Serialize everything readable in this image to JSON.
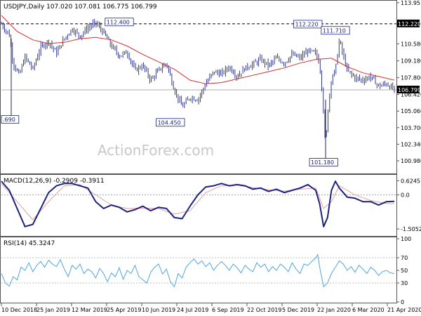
{
  "chart_data": [
    {
      "type": "candlestick",
      "symbol_header": "USDJPY,Daily  107.020 107.081 106.775 106.799",
      "watermark": "ActionForex.com",
      "ylim": [
        100.06,
        114.0
      ],
      "y_ticks": [
        113.95,
        112.22,
        110.58,
        109.18,
        107.8,
        106.42,
        105.06,
        103.7,
        102.34,
        100.98
      ],
      "y_tick_labels": [
        "113.95",
        "112.220",
        "110.580",
        "109.180",
        "107.800",
        "106.420",
        "105.060",
        "103.700",
        "102.340",
        "100.980"
      ],
      "last_price": 106.799,
      "last_price_label": "106.799",
      "hline": {
        "value": 112.22,
        "label": "112.220"
      },
      "hline2": {
        "value": 106.799
      },
      "annotations": [
        {
          "label": "112.400",
          "price": 112.4,
          "t": 0.3
        },
        {
          "label": "104.450",
          "price": 104.45,
          "t": 0.43
        },
        {
          "label": "112.220",
          "price": 112.22,
          "t": 0.78
        },
        {
          "label": "111.710",
          "price": 111.71,
          "t": 0.85
        },
        {
          "label": "101.180",
          "price": 101.18,
          "t": 0.82
        },
        {
          "label": ".690",
          "price": 104.69,
          "t": 0.02
        }
      ],
      "price_path": [
        [
          0.0,
          112.2
        ],
        [
          0.02,
          111.3
        ],
        [
          0.03,
          109.0
        ],
        [
          0.045,
          108.0
        ],
        [
          0.06,
          109.5
        ],
        [
          0.08,
          108.5
        ],
        [
          0.1,
          110.3
        ],
        [
          0.12,
          110.8
        ],
        [
          0.14,
          109.8
        ],
        [
          0.16,
          111.0
        ],
        [
          0.18,
          111.8
        ],
        [
          0.2,
          111.2
        ],
        [
          0.22,
          111.9
        ],
        [
          0.24,
          112.3
        ],
        [
          0.26,
          111.5
        ],
        [
          0.28,
          110.4
        ],
        [
          0.3,
          109.6
        ],
        [
          0.32,
          109.9
        ],
        [
          0.34,
          108.4
        ],
        [
          0.36,
          108.8
        ],
        [
          0.38,
          107.6
        ],
        [
          0.4,
          108.4
        ],
        [
          0.42,
          109.0
        ],
        [
          0.44,
          106.8
        ],
        [
          0.46,
          105.4
        ],
        [
          0.48,
          106.2
        ],
        [
          0.5,
          106.0
        ],
        [
          0.52,
          107.3
        ],
        [
          0.54,
          108.3
        ],
        [
          0.56,
          108.1
        ],
        [
          0.58,
          108.7
        ],
        [
          0.6,
          107.9
        ],
        [
          0.62,
          108.6
        ],
        [
          0.64,
          108.9
        ],
        [
          0.66,
          109.3
        ],
        [
          0.68,
          108.8
        ],
        [
          0.7,
          109.4
        ],
        [
          0.72,
          109.0
        ],
        [
          0.74,
          109.7
        ],
        [
          0.76,
          109.4
        ],
        [
          0.78,
          110.0
        ],
        [
          0.8,
          109.8
        ],
        [
          0.81,
          108.9
        ],
        [
          0.815,
          107.2
        ],
        [
          0.82,
          104.8
        ],
        [
          0.825,
          101.9
        ],
        [
          0.83,
          104.9
        ],
        [
          0.84,
          107.8
        ],
        [
          0.85,
          108.4
        ],
        [
          0.86,
          110.9
        ],
        [
          0.87,
          109.6
        ],
        [
          0.88,
          108.4
        ],
        [
          0.9,
          107.8
        ],
        [
          0.92,
          107.6
        ],
        [
          0.94,
          107.9
        ],
        [
          0.96,
          107.1
        ],
        [
          0.98,
          107.3
        ],
        [
          1.0,
          106.8
        ]
      ],
      "ma_path": [
        [
          0.0,
          112.9
        ],
        [
          0.04,
          111.6
        ],
        [
          0.08,
          110.9
        ],
        [
          0.12,
          110.6
        ],
        [
          0.16,
          110.7
        ],
        [
          0.2,
          111.0
        ],
        [
          0.24,
          111.1
        ],
        [
          0.28,
          110.9
        ],
        [
          0.32,
          110.4
        ],
        [
          0.36,
          109.7
        ],
        [
          0.4,
          109.1
        ],
        [
          0.44,
          108.5
        ],
        [
          0.48,
          107.6
        ],
        [
          0.52,
          107.3
        ],
        [
          0.56,
          107.4
        ],
        [
          0.6,
          107.7
        ],
        [
          0.64,
          108.0
        ],
        [
          0.68,
          108.3
        ],
        [
          0.72,
          108.6
        ],
        [
          0.76,
          109.0
        ],
        [
          0.8,
          109.3
        ],
        [
          0.84,
          109.4
        ],
        [
          0.88,
          108.7
        ],
        [
          0.92,
          108.2
        ],
        [
          0.96,
          107.9
        ],
        [
          1.0,
          107.6
        ]
      ],
      "x_tick_labels": [
        "10 Dec 2018",
        "25 Jan 2019",
        "12 Mar 2019",
        "25 Apr 2019",
        "10 Jun 2019",
        "24 Jul 2019",
        "6 Sep 2019",
        "22 Oct 2019",
        "5 Dec 2019",
        "22 Jan 2020",
        "6 Mar 2020",
        "21 Apr 2020"
      ],
      "colors": {
        "candles": "#1a237e",
        "ma": "#d32f2f",
        "hline": "#000000",
        "grid": "#c0c0c0"
      }
    },
    {
      "type": "line",
      "header": "MACD(12,26,9) -0.2909 -0.3911",
      "ylim": [
        -1.75,
        0.82
      ],
      "y_ticks": [
        0.6245,
        0.0,
        -1.5052
      ],
      "y_tick_labels": [
        "0.6245",
        "0.0",
        "-1.5052"
      ],
      "series": [
        {
          "color": "#1a237e",
          "points": [
            [
              0.0,
              0.6
            ],
            [
              0.02,
              0.2
            ],
            [
              0.04,
              -0.6
            ],
            [
              0.06,
              -1.4
            ],
            [
              0.08,
              -1.3
            ],
            [
              0.1,
              -0.6
            ],
            [
              0.12,
              0.1
            ],
            [
              0.14,
              0.4
            ],
            [
              0.16,
              0.5
            ],
            [
              0.18,
              0.5
            ],
            [
              0.2,
              0.4
            ],
            [
              0.22,
              0.3
            ],
            [
              0.24,
              -0.3
            ],
            [
              0.26,
              -0.6
            ],
            [
              0.28,
              -0.45
            ],
            [
              0.3,
              -0.55
            ],
            [
              0.32,
              -0.75
            ],
            [
              0.34,
              -0.65
            ],
            [
              0.36,
              -0.5
            ],
            [
              0.38,
              -0.7
            ],
            [
              0.4,
              -0.55
            ],
            [
              0.42,
              -0.6
            ],
            [
              0.44,
              -1.0
            ],
            [
              0.46,
              -1.05
            ],
            [
              0.48,
              -0.5
            ],
            [
              0.5,
              0.0
            ],
            [
              0.52,
              0.35
            ],
            [
              0.54,
              0.4
            ],
            [
              0.56,
              0.5
            ],
            [
              0.58,
              0.4
            ],
            [
              0.6,
              0.45
            ],
            [
              0.62,
              0.4
            ],
            [
              0.64,
              0.25
            ],
            [
              0.66,
              0.3
            ],
            [
              0.68,
              0.15
            ],
            [
              0.7,
              0.25
            ],
            [
              0.72,
              0.1
            ],
            [
              0.74,
              0.2
            ],
            [
              0.76,
              0.3
            ],
            [
              0.78,
              0.45
            ],
            [
              0.8,
              0.2
            ],
            [
              0.81,
              -0.4
            ],
            [
              0.82,
              -1.4
            ],
            [
              0.83,
              -1.0
            ],
            [
              0.84,
              0.2
            ],
            [
              0.85,
              0.6
            ],
            [
              0.86,
              0.3
            ],
            [
              0.88,
              -0.1
            ],
            [
              0.9,
              -0.15
            ],
            [
              0.92,
              -0.3
            ],
            [
              0.94,
              -0.3
            ],
            [
              0.96,
              -0.45
            ],
            [
              0.98,
              -0.3
            ],
            [
              1.0,
              -0.29
            ]
          ]
        },
        {
          "color": "#e0a0a0",
          "points": [
            [
              0.0,
              0.5
            ],
            [
              0.04,
              -0.3
            ],
            [
              0.08,
              -1.1
            ],
            [
              0.12,
              -0.3
            ],
            [
              0.16,
              0.4
            ],
            [
              0.2,
              0.45
            ],
            [
              0.24,
              0.0
            ],
            [
              0.28,
              -0.45
            ],
            [
              0.32,
              -0.6
            ],
            [
              0.36,
              -0.58
            ],
            [
              0.4,
              -0.6
            ],
            [
              0.44,
              -0.85
            ],
            [
              0.48,
              -0.7
            ],
            [
              0.52,
              0.1
            ],
            [
              0.56,
              0.4
            ],
            [
              0.6,
              0.43
            ],
            [
              0.64,
              0.32
            ],
            [
              0.68,
              0.22
            ],
            [
              0.72,
              0.16
            ],
            [
              0.76,
              0.25
            ],
            [
              0.8,
              0.3
            ],
            [
              0.82,
              -0.6
            ],
            [
              0.84,
              -0.3
            ],
            [
              0.86,
              0.4
            ],
            [
              0.9,
              0.0
            ],
            [
              0.94,
              -0.25
            ],
            [
              0.98,
              -0.38
            ],
            [
              1.0,
              -0.39
            ]
          ]
        }
      ]
    },
    {
      "type": "line",
      "header": "RSI(14) 45.3247",
      "ylim": [
        0,
        100
      ],
      "y_ticks": [
        100,
        70,
        50,
        30,
        0
      ],
      "y_tick_labels": [
        "100",
        "70",
        "50",
        "30",
        "0"
      ],
      "series": [
        {
          "color": "#4da6e0",
          "points": [
            [
              0.0,
              45
            ],
            [
              0.01,
              30
            ],
            [
              0.02,
              25
            ],
            [
              0.03,
              40
            ],
            [
              0.04,
              35
            ],
            [
              0.05,
              55
            ],
            [
              0.06,
              50
            ],
            [
              0.07,
              62
            ],
            [
              0.08,
              48
            ],
            [
              0.09,
              58
            ],
            [
              0.1,
              64
            ],
            [
              0.11,
              55
            ],
            [
              0.12,
              66
            ],
            [
              0.13,
              60
            ],
            [
              0.14,
              56
            ],
            [
              0.15,
              67
            ],
            [
              0.16,
              52
            ],
            [
              0.17,
              40
            ],
            [
              0.18,
              58
            ],
            [
              0.19,
              52
            ],
            [
              0.2,
              60
            ],
            [
              0.21,
              45
            ],
            [
              0.22,
              52
            ],
            [
              0.23,
              48
            ],
            [
              0.24,
              38
            ],
            [
              0.25,
              53
            ],
            [
              0.26,
              45
            ],
            [
              0.27,
              32
            ],
            [
              0.28,
              46
            ],
            [
              0.29,
              40
            ],
            [
              0.3,
              54
            ],
            [
              0.31,
              36
            ],
            [
              0.32,
              50
            ],
            [
              0.33,
              45
            ],
            [
              0.34,
              58
            ],
            [
              0.35,
              40
            ],
            [
              0.36,
              35
            ],
            [
              0.37,
              30
            ],
            [
              0.38,
              47
            ],
            [
              0.39,
              55
            ],
            [
              0.4,
              60
            ],
            [
              0.41,
              44
            ],
            [
              0.42,
              52
            ],
            [
              0.43,
              32
            ],
            [
              0.44,
              24
            ],
            [
              0.45,
              45
            ],
            [
              0.46,
              38
            ],
            [
              0.47,
              55
            ],
            [
              0.48,
              62
            ],
            [
              0.49,
              68
            ],
            [
              0.5,
              60
            ],
            [
              0.51,
              65
            ],
            [
              0.52,
              56
            ],
            [
              0.53,
              62
            ],
            [
              0.54,
              50
            ],
            [
              0.55,
              58
            ],
            [
              0.56,
              64
            ],
            [
              0.57,
              58
            ],
            [
              0.58,
              50
            ],
            [
              0.59,
              60
            ],
            [
              0.6,
              54
            ],
            [
              0.61,
              46
            ],
            [
              0.62,
              58
            ],
            [
              0.63,
              52
            ],
            [
              0.64,
              48
            ],
            [
              0.65,
              62
            ],
            [
              0.66,
              55
            ],
            [
              0.67,
              60
            ],
            [
              0.68,
              48
            ],
            [
              0.69,
              56
            ],
            [
              0.7,
              50
            ],
            [
              0.71,
              60
            ],
            [
              0.72,
              55
            ],
            [
              0.73,
              48
            ],
            [
              0.74,
              62
            ],
            [
              0.75,
              52
            ],
            [
              0.76,
              45
            ],
            [
              0.77,
              60
            ],
            [
              0.78,
              58
            ],
            [
              0.79,
              64
            ],
            [
              0.8,
              70
            ],
            [
              0.805,
              75
            ],
            [
              0.81,
              55
            ],
            [
              0.82,
              24
            ],
            [
              0.83,
              30
            ],
            [
              0.84,
              45
            ],
            [
              0.85,
              55
            ],
            [
              0.86,
              65
            ],
            [
              0.87,
              60
            ],
            [
              0.88,
              50
            ],
            [
              0.89,
              56
            ],
            [
              0.9,
              47
            ],
            [
              0.91,
              58
            ],
            [
              0.92,
              52
            ],
            [
              0.93,
              45
            ],
            [
              0.94,
              55
            ],
            [
              0.95,
              50
            ],
            [
              0.96,
              42
            ],
            [
              0.97,
              48
            ],
            [
              0.98,
              50
            ],
            [
              0.99,
              46
            ],
            [
              1.0,
              45
            ]
          ]
        }
      ]
    }
  ]
}
